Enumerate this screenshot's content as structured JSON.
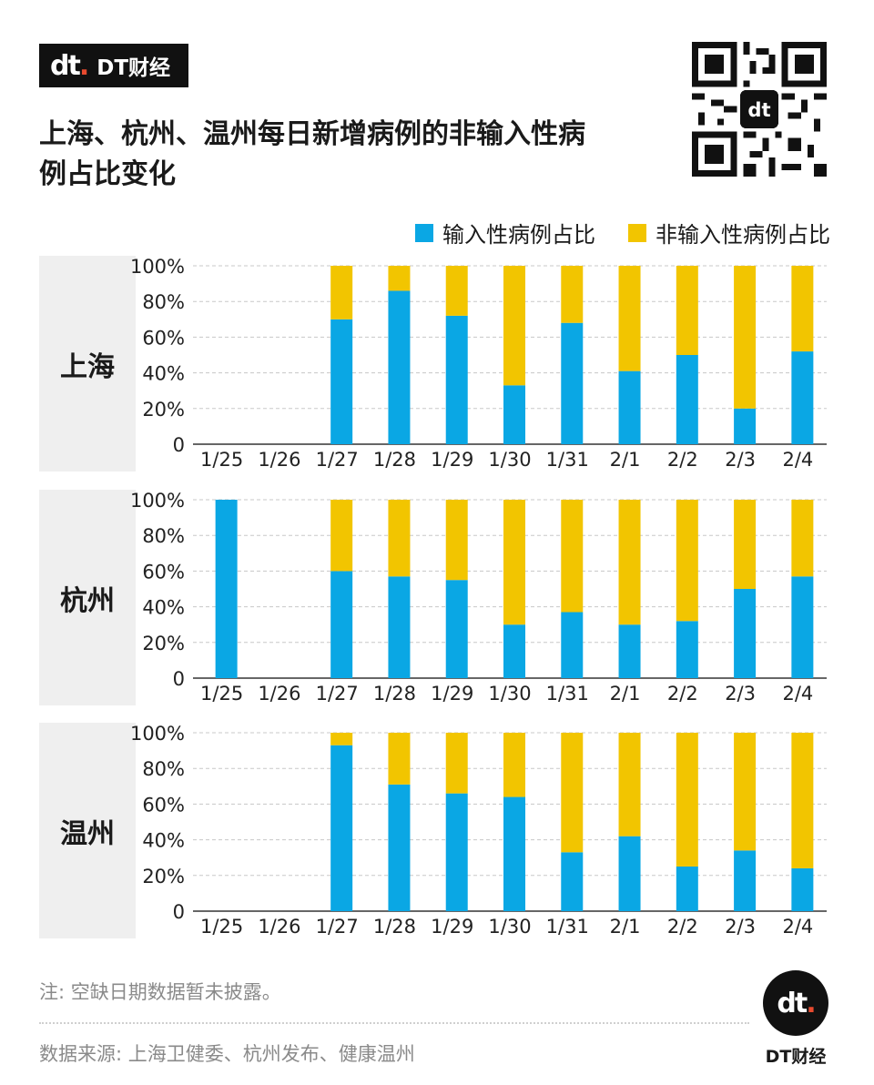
{
  "brand": {
    "logo": "dt",
    "logo_dot": ".",
    "name": "DT财经"
  },
  "title": "上海、杭州、温州每日新增病例的非输入性病例占比变化",
  "legend": [
    {
      "label": "输入性病例占比",
      "color": "#0aa7e4"
    },
    {
      "label": "非输入性病例占比",
      "color": "#f2c500"
    }
  ],
  "chart_data": {
    "type": "bar",
    "stacked": true,
    "categories": [
      "1/25",
      "1/26",
      "1/27",
      "1/28",
      "1/29",
      "1/30",
      "1/31",
      "2/1",
      "2/2",
      "2/3",
      "2/4"
    ],
    "y_ticks": [
      "0",
      "20%",
      "40%",
      "60%",
      "80%",
      "100%"
    ],
    "ylim": [
      0,
      100
    ],
    "grid": true,
    "legend_position": "top-right",
    "panels": [
      {
        "name": "上海",
        "series": [
          {
            "name": "输入性病例占比",
            "values": [
              null,
              null,
              70,
              86,
              72,
              33,
              68,
              41,
              50,
              20,
              52
            ]
          },
          {
            "name": "非输入性病例占比",
            "values": [
              null,
              null,
              30,
              14,
              28,
              67,
              32,
              59,
              50,
              80,
              48
            ]
          }
        ]
      },
      {
        "name": "杭州",
        "series": [
          {
            "name": "输入性病例占比",
            "values": [
              100,
              null,
              60,
              57,
              55,
              30,
              37,
              30,
              32,
              50,
              57
            ]
          },
          {
            "name": "非输入性病例占比",
            "values": [
              0,
              null,
              40,
              43,
              45,
              70,
              63,
              70,
              68,
              50,
              43
            ]
          }
        ]
      },
      {
        "name": "温州",
        "series": [
          {
            "name": "输入性病例占比",
            "values": [
              null,
              null,
              93,
              71,
              66,
              64,
              33,
              42,
              25,
              34,
              24
            ]
          },
          {
            "name": "非输入性病例占比",
            "values": [
              null,
              null,
              7,
              29,
              34,
              36,
              67,
              58,
              75,
              66,
              76
            ]
          }
        ]
      }
    ]
  },
  "footer": {
    "note": "注: 空缺日期数据暂未披露。",
    "source": "数据来源: 上海卫健委、杭州发布、健康温州",
    "badge_logo": "dt",
    "badge_dot": ".",
    "badge_name": "DT财经"
  }
}
